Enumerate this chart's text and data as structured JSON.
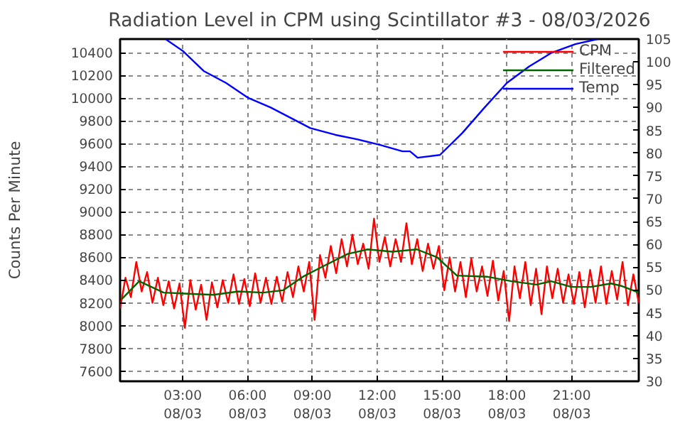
{
  "chart_data": {
    "type": "line",
    "title": "Radiation Level in CPM using Scintillator #3 - 08/03/2026",
    "ylabel": "Counts Per Minute",
    "x": [
      "2026-08-03T00:06",
      "2026-08-03T00:21",
      "2026-08-03T00:36",
      "2026-08-03T00:51",
      "2026-08-03T01:06",
      "2026-08-03T01:21",
      "2026-08-03T01:36",
      "2026-08-03T01:51",
      "2026-08-03T02:06",
      "2026-08-03T02:21",
      "2026-08-03T02:36",
      "2026-08-03T02:51",
      "2026-08-03T03:06",
      "2026-08-03T03:21",
      "2026-08-03T03:36",
      "2026-08-03T03:51",
      "2026-08-03T04:06",
      "2026-08-03T04:21",
      "2026-08-03T04:36",
      "2026-08-03T04:51",
      "2026-08-03T05:06",
      "2026-08-03T05:21",
      "2026-08-03T05:36",
      "2026-08-03T05:51",
      "2026-08-03T06:06",
      "2026-08-03T06:21",
      "2026-08-03T06:36",
      "2026-08-03T06:51",
      "2026-08-03T07:06",
      "2026-08-03T07:21",
      "2026-08-03T07:36",
      "2026-08-03T07:51",
      "2026-08-03T08:06",
      "2026-08-03T08:21",
      "2026-08-03T08:36",
      "2026-08-03T08:51",
      "2026-08-03T09:06",
      "2026-08-03T09:21",
      "2026-08-03T09:36",
      "2026-08-03T09:51",
      "2026-08-03T10:06",
      "2026-08-03T10:21",
      "2026-08-03T10:36",
      "2026-08-03T10:51",
      "2026-08-03T11:06",
      "2026-08-03T11:21",
      "2026-08-03T11:36",
      "2026-08-03T11:51",
      "2026-08-03T12:06",
      "2026-08-03T12:21",
      "2026-08-03T12:36",
      "2026-08-03T12:51",
      "2026-08-03T13:06",
      "2026-08-03T13:21",
      "2026-08-03T13:36",
      "2026-08-03T13:51",
      "2026-08-03T14:06",
      "2026-08-03T14:21",
      "2026-08-03T14:36",
      "2026-08-03T14:51",
      "2026-08-03T15:06",
      "2026-08-03T15:21",
      "2026-08-03T15:36",
      "2026-08-03T15:51",
      "2026-08-03T16:06",
      "2026-08-03T16:21",
      "2026-08-03T16:36",
      "2026-08-03T16:51",
      "2026-08-03T17:06",
      "2026-08-03T17:21",
      "2026-08-03T17:36",
      "2026-08-03T17:51",
      "2026-08-03T18:06",
      "2026-08-03T18:21",
      "2026-08-03T18:36",
      "2026-08-03T18:51",
      "2026-08-03T19:06",
      "2026-08-03T19:21",
      "2026-08-03T19:36",
      "2026-08-03T19:51",
      "2026-08-03T20:06",
      "2026-08-03T20:21",
      "2026-08-03T20:36",
      "2026-08-03T20:51",
      "2026-08-03T21:06",
      "2026-08-03T21:21",
      "2026-08-03T21:36",
      "2026-08-03T21:51",
      "2026-08-03T22:06",
      "2026-08-03T22:21",
      "2026-08-03T22:36",
      "2026-08-03T22:51",
      "2026-08-03T23:06",
      "2026-08-03T23:21",
      "2026-08-03T23:36",
      "2026-08-03T23:51",
      "2026-08-04T00:06"
    ],
    "series": [
      {
        "name": "CPM",
        "color": "#ff0000",
        "values": [
          8150,
          8420,
          8250,
          8560,
          8300,
          8470,
          8200,
          8420,
          8180,
          8390,
          8150,
          8370,
          7980,
          8400,
          8140,
          8360,
          8050,
          8380,
          8160,
          8400,
          8200,
          8450,
          8190,
          8410,
          8170,
          8460,
          8200,
          8420,
          8190,
          8430,
          8210,
          8470,
          8250,
          8520,
          8300,
          8560,
          8050,
          8620,
          8420,
          8700,
          8460,
          8760,
          8520,
          8800,
          8540,
          8720,
          8500,
          8940,
          8560,
          8780,
          8520,
          8760,
          8560,
          8900,
          8540,
          8760,
          8480,
          8720,
          8500,
          8700,
          8310,
          8600,
          8300,
          8560,
          8250,
          8590,
          8300,
          8520,
          8260,
          8570,
          8220,
          8480,
          8040,
          8520,
          8240,
          8560,
          8180,
          8500,
          8100,
          8520,
          8240,
          8500,
          8200,
          8450,
          8190,
          8470,
          8160,
          8490,
          8200,
          8520,
          8190,
          8480,
          8230,
          8560,
          8180,
          8450,
          8200
        ]
      },
      {
        "name": "Filtered",
        "color": "#006400",
        "x": [
          "2026-08-03T00:10",
          "2026-08-03T00:59",
          "2026-08-03T02:07",
          "2026-08-03T03:16",
          "2026-08-03T04:25",
          "2026-08-03T05:34",
          "2026-08-03T06:43",
          "2026-08-03T07:38",
          "2026-08-03T08:34",
          "2026-08-03T09:29",
          "2026-08-03T10:38",
          "2026-08-03T11:33",
          "2026-08-03T12:42",
          "2026-08-03T13:50",
          "2026-08-03T14:46",
          "2026-08-03T15:41",
          "2026-08-03T17:04",
          "2026-08-03T18:13",
          "2026-08-03T19:22",
          "2026-08-03T20:03",
          "2026-08-03T20:59",
          "2026-08-03T21:53",
          "2026-08-03T22:49",
          "2026-08-03T23:16",
          "2026-08-04T00:06"
        ],
        "values": [
          8230,
          8390,
          8290,
          8280,
          8270,
          8300,
          8290,
          8310,
          8430,
          8520,
          8630,
          8670,
          8650,
          8670,
          8600,
          8440,
          8430,
          8390,
          8360,
          8390,
          8340,
          8340,
          8370,
          8350,
          8290
        ]
      },
      {
        "name": "Temp",
        "color": "#0000ff",
        "axis": "y2",
        "x": [
          "2026-08-03T02:12",
          "2026-08-03T03:00",
          "2026-08-03T03:58",
          "2026-08-03T05:00",
          "2026-08-03T06:02",
          "2026-08-03T07:04",
          "2026-08-03T08:00",
          "2026-08-03T08:54",
          "2026-08-03T10:04",
          "2026-08-03T11:06",
          "2026-08-03T12:08",
          "2026-08-03T13:10",
          "2026-08-03T13:31",
          "2026-08-03T13:52",
          "2026-08-03T14:54",
          "2026-08-03T15:56",
          "2026-08-03T16:58",
          "2026-08-03T18:00",
          "2026-08-03T19:02",
          "2026-08-03T20:04",
          "2026-08-03T21:10",
          "2026-08-03T22:12"
        ],
        "values": [
          105,
          102.4,
          98,
          95.4,
          92.1,
          90,
          87.7,
          85.5,
          84,
          83,
          81.8,
          80.4,
          80.4,
          79,
          79.6,
          84.4,
          90,
          95.4,
          99,
          102,
          103.9,
          105
        ]
      }
    ],
    "xlim": [
      "2026-08-03T00:06",
      "2026-08-04T00:06"
    ],
    "xticks": [
      {
        "value": "2026-08-03T03:00",
        "label": "03:00\n08/03"
      },
      {
        "value": "2026-08-03T06:00",
        "label": "06:00\n08/03"
      },
      {
        "value": "2026-08-03T09:00",
        "label": "09:00\n08/03"
      },
      {
        "value": "2026-08-03T12:00",
        "label": "12:00\n08/03"
      },
      {
        "value": "2026-08-03T15:00",
        "label": "15:00\n08/03"
      },
      {
        "value": "2026-08-03T18:00",
        "label": "18:00\n08/03"
      },
      {
        "value": "2026-08-03T21:00",
        "label": "21:00\n08/03"
      }
    ],
    "ylim": [
      7510,
      10520
    ],
    "yticks": [
      7600,
      7800,
      8000,
      8200,
      8400,
      8600,
      8800,
      9000,
      9200,
      9400,
      9600,
      9800,
      10000,
      10200,
      10400
    ],
    "y2lim": [
      30,
      105
    ],
    "y2ticks": [
      30,
      35,
      40,
      45,
      50,
      55,
      60,
      65,
      70,
      75,
      80,
      85,
      90,
      95,
      100,
      105
    ],
    "grid": true,
    "legend": "top right",
    "line_style": "solid"
  }
}
